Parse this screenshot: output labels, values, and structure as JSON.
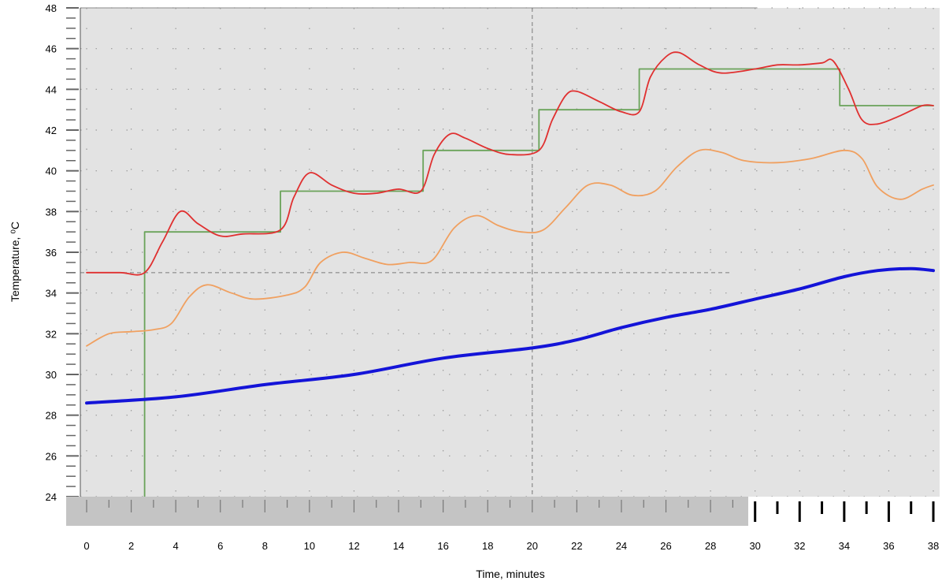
{
  "chart_data": {
    "type": "line",
    "title": "",
    "xlabel": "Time, minutes",
    "ylabel": "Temperature, ⁰C",
    "xlim": [
      0,
      38
    ],
    "ylim": [
      24,
      48
    ],
    "x_ticks": [
      0,
      2,
      4,
      6,
      8,
      10,
      12,
      14,
      16,
      18,
      20,
      22,
      24,
      26,
      28,
      30,
      32,
      34,
      36,
      38
    ],
    "y_ticks": [
      24,
      26,
      28,
      30,
      32,
      34,
      36,
      38,
      40,
      42,
      44,
      46,
      48
    ],
    "grid": "dotted",
    "reference_lines": [
      {
        "orientation": "vertical",
        "x": 20,
        "style": "dashed"
      },
      {
        "orientation": "horizontal",
        "y": 35,
        "style": "dashed"
      }
    ],
    "colors": {
      "plot_background": "#e3e3e3",
      "ruler_background": "#c4c4c4",
      "setpoint": "#6aa35a",
      "red": "#e03030",
      "orange": "#f0a060",
      "blue": "#1414d8"
    },
    "series": [
      {
        "color": "#6aa35a",
        "shape": "step",
        "points": [
          [
            2.6,
            24
          ],
          [
            2.6,
            37
          ],
          [
            8.7,
            37
          ],
          [
            8.7,
            39
          ],
          [
            15.1,
            39
          ],
          [
            15.1,
            41
          ],
          [
            20.3,
            41
          ],
          [
            20.3,
            43
          ],
          [
            24.8,
            43
          ],
          [
            24.8,
            45
          ],
          [
            33.8,
            45
          ],
          [
            33.8,
            43.2
          ],
          [
            38,
            43.2
          ]
        ]
      },
      {
        "color": "#e03030",
        "points": [
          [
            0,
            35
          ],
          [
            1.5,
            35
          ],
          [
            2.6,
            35
          ],
          [
            3.4,
            36.5
          ],
          [
            4.2,
            38
          ],
          [
            5,
            37.4
          ],
          [
            6,
            36.8
          ],
          [
            7,
            36.9
          ],
          [
            8.7,
            37.1
          ],
          [
            9.3,
            38.7
          ],
          [
            10,
            39.9
          ],
          [
            11,
            39.3
          ],
          [
            12,
            38.9
          ],
          [
            13,
            38.9
          ],
          [
            14,
            39.1
          ],
          [
            15,
            39
          ],
          [
            15.6,
            40.8
          ],
          [
            16.3,
            41.8
          ],
          [
            17,
            41.6
          ],
          [
            18,
            41.1
          ],
          [
            19,
            40.8
          ],
          [
            20.3,
            41
          ],
          [
            20.9,
            42.5
          ],
          [
            21.5,
            43.7
          ],
          [
            22,
            43.9
          ],
          [
            23,
            43.4
          ],
          [
            24,
            42.9
          ],
          [
            24.8,
            42.9
          ],
          [
            25.3,
            44.6
          ],
          [
            26,
            45.6
          ],
          [
            26.6,
            45.8
          ],
          [
            27.5,
            45.2
          ],
          [
            28.5,
            44.8
          ],
          [
            30,
            45
          ],
          [
            31,
            45.2
          ],
          [
            32,
            45.2
          ],
          [
            33,
            45.3
          ],
          [
            33.5,
            45.4
          ],
          [
            34.2,
            44
          ],
          [
            34.8,
            42.5
          ],
          [
            35.5,
            42.3
          ],
          [
            36.5,
            42.7
          ],
          [
            37.5,
            43.2
          ],
          [
            38,
            43.2
          ]
        ]
      },
      {
        "color": "#f0a060",
        "points": [
          [
            0,
            31.4
          ],
          [
            1,
            32
          ],
          [
            2,
            32.1
          ],
          [
            3,
            32.2
          ],
          [
            3.8,
            32.5
          ],
          [
            4.6,
            33.8
          ],
          [
            5.4,
            34.4
          ],
          [
            6.5,
            34
          ],
          [
            7.5,
            33.7
          ],
          [
            9,
            33.9
          ],
          [
            9.8,
            34.3
          ],
          [
            10.5,
            35.5
          ],
          [
            11.5,
            36
          ],
          [
            12.5,
            35.7
          ],
          [
            13.5,
            35.4
          ],
          [
            14.5,
            35.5
          ],
          [
            15.5,
            35.6
          ],
          [
            16.5,
            37.2
          ],
          [
            17.5,
            37.8
          ],
          [
            18.5,
            37.3
          ],
          [
            19.5,
            37
          ],
          [
            20.5,
            37.1
          ],
          [
            21.5,
            38.2
          ],
          [
            22.5,
            39.3
          ],
          [
            23.5,
            39.3
          ],
          [
            24.5,
            38.8
          ],
          [
            25.5,
            39
          ],
          [
            26.5,
            40.2
          ],
          [
            27.5,
            41
          ],
          [
            28.5,
            40.9
          ],
          [
            29.5,
            40.5
          ],
          [
            31,
            40.4
          ],
          [
            32.5,
            40.6
          ],
          [
            34,
            41
          ],
          [
            34.8,
            40.6
          ],
          [
            35.5,
            39.2
          ],
          [
            36.5,
            38.6
          ],
          [
            37.5,
            39.1
          ],
          [
            38,
            39.3
          ]
        ]
      },
      {
        "color": "#1414d8",
        "points": [
          [
            0,
            28.6
          ],
          [
            4,
            28.9
          ],
          [
            8,
            29.5
          ],
          [
            12,
            30
          ],
          [
            16,
            30.8
          ],
          [
            20,
            31.3
          ],
          [
            22,
            31.7
          ],
          [
            24,
            32.3
          ],
          [
            26,
            32.8
          ],
          [
            28,
            33.2
          ],
          [
            30,
            33.7
          ],
          [
            32,
            34.2
          ],
          [
            34,
            34.8
          ],
          [
            35.5,
            35.1
          ],
          [
            37,
            35.2
          ],
          [
            38,
            35.1
          ]
        ]
      }
    ]
  }
}
